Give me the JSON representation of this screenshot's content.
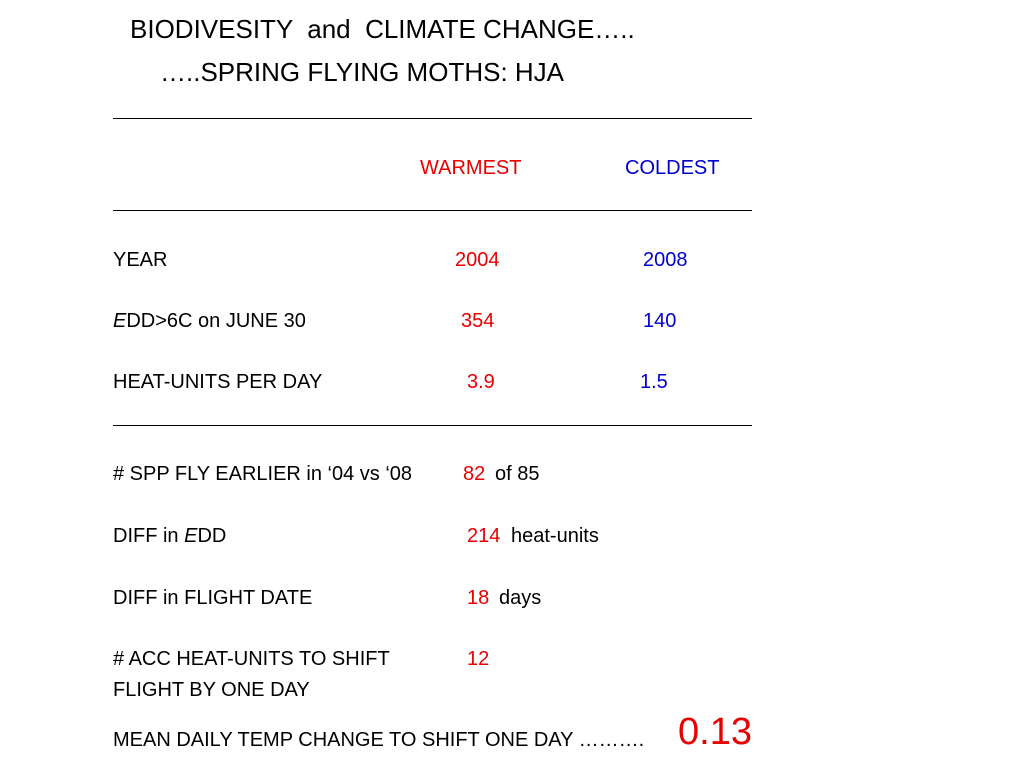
{
  "title": {
    "line1": "BIODIVESITY  and  CLIMATE CHANGE…..",
    "line2": "…..SPRING FLYING MOTHS: HJA"
  },
  "table": {
    "columns": [
      "WARMEST",
      "COLDEST"
    ],
    "rows": [
      {
        "label": "YEAR",
        "warmest": 2004,
        "coldest": 2008
      },
      {
        "label_italic": "E",
        "label": "DD>6C on JUNE 30",
        "warmest": 354,
        "coldest": 140
      },
      {
        "label": "HEAT-UNITS PER DAY",
        "warmest": 3.9,
        "coldest": 1.5
      }
    ]
  },
  "results": [
    {
      "label": "# SPP FLY EARLIER in ‘04 vs ‘08",
      "value": 82,
      "unit": "of 85"
    },
    {
      "label": "DIFF in ",
      "label_italic": "E",
      "label_rest": "DD",
      "value": 214,
      "unit": "heat-units"
    },
    {
      "label": "DIFF in FLIGHT DATE",
      "value": 18,
      "unit": "days"
    },
    {
      "label": "# ACC HEAT-UNITS TO SHIFT",
      "label_line2": "FLIGHT BY ONE DAY",
      "value": 12
    }
  ],
  "conclusion": {
    "label": "MEAN DAILY TEMP CHANGE TO SHIFT ONE DAY ……….",
    "value": 0.13
  }
}
